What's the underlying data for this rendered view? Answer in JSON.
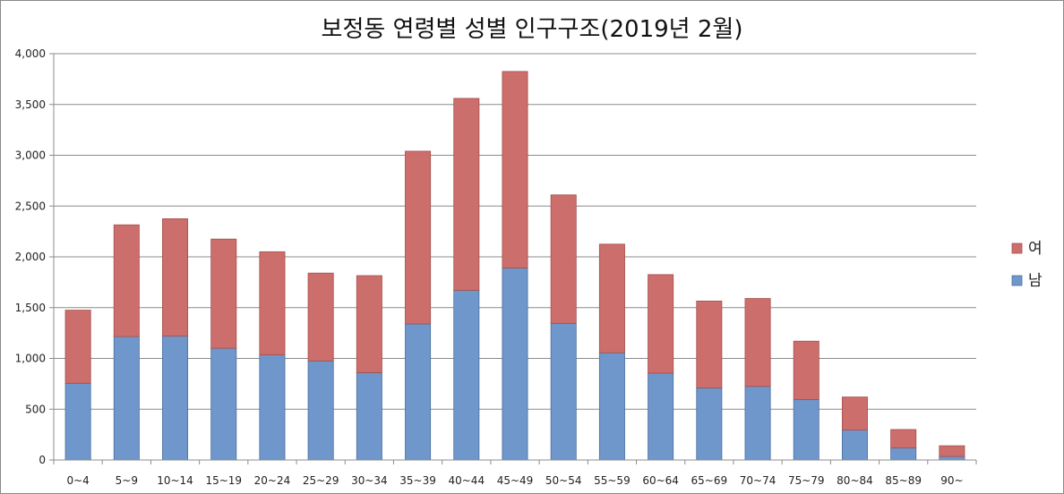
{
  "chart_data": {
    "type": "bar",
    "stacked": true,
    "title": "보정동 연령별 성별 인구구조(2019년 2월)",
    "xlabel": "",
    "ylabel": "",
    "ylim": [
      0,
      4000
    ],
    "yticks": [
      0,
      500,
      1000,
      1500,
      2000,
      2500,
      3000,
      3500,
      4000
    ],
    "ytick_labels": [
      "0",
      "500",
      "1,000",
      "1,500",
      "2,000",
      "2,500",
      "3,000",
      "3,500",
      "4,000"
    ],
    "grid": true,
    "legend_position": "right",
    "categories": [
      "0~4",
      "5~9",
      "10~14",
      "15~19",
      "20~24",
      "25~29",
      "30~34",
      "35~39",
      "40~44",
      "45~49",
      "50~54",
      "55~59",
      "60~64",
      "65~69",
      "70~74",
      "75~79",
      "80~84",
      "85~89",
      "90~"
    ],
    "series": [
      {
        "name": "남",
        "color": "#6f97cc",
        "values": [
          755,
          1215,
          1220,
          1100,
          1035,
          975,
          860,
          1340,
          1670,
          1890,
          1345,
          1055,
          855,
          710,
          725,
          595,
          295,
          120,
          35
        ]
      },
      {
        "name": "여",
        "color": "#cc6e6b",
        "values": [
          720,
          1100,
          1155,
          1075,
          1015,
          865,
          955,
          1700,
          1890,
          1935,
          1265,
          1070,
          970,
          855,
          865,
          575,
          325,
          180,
          105
        ]
      }
    ],
    "legend_order": [
      "여",
      "남"
    ]
  }
}
